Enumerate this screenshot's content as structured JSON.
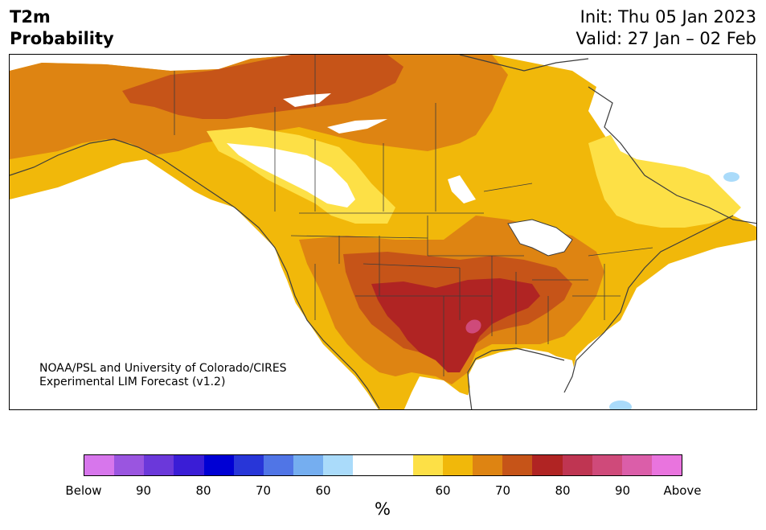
{
  "header": {
    "title_line1": "T2m",
    "title_line2": "Probability",
    "init": "Init: Thu 05 Jan 2023",
    "valid": "Valid: 27 Jan – 02 Feb"
  },
  "credit": {
    "line1": "NOAA/PSL and University of Colorado/CIRES",
    "line2": "Experimental LIM Forecast (v1.2)"
  },
  "colorbar": {
    "unit": "%",
    "bins": [
      "#d776ec",
      "#9a55e0",
      "#6b38da",
      "#3a1dd6",
      "#0000d4",
      "#2836d8",
      "#5075e6",
      "#75aef0",
      "#aadbfa",
      "#ffffff",
      "#ffffff",
      "#fde046",
      "#f1b80a",
      "#de8412",
      "#c65418",
      "#b02423",
      "#bf3552",
      "#cf4a7a",
      "#db5ea9",
      "#e974de"
    ],
    "tick_labels": [
      "Below",
      "90",
      "80",
      "70",
      "60",
      "60",
      "70",
      "80",
      "90",
      "Above"
    ]
  },
  "legend_colors": {
    "above_60": "#fde046",
    "above_70": "#f1b80a",
    "above_80": "#de8412",
    "above_90": "#c65418",
    "above_max": "#b02423",
    "below_60": "#aadbfa",
    "coast": "#3c3c3c"
  }
}
